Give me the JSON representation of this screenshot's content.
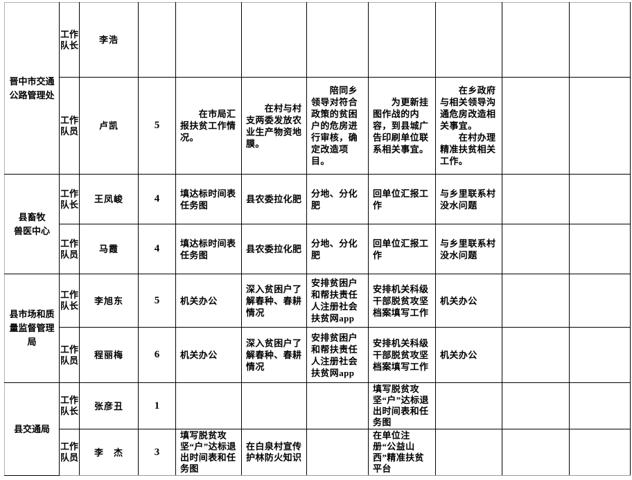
{
  "colors": {
    "cell_border": "#000000",
    "page_edge": "#b0b0b0",
    "text": "#000000",
    "background": "#ffffff"
  },
  "table": {
    "groups": [
      {
        "org": "晋中市交通\n公路管理处",
        "rows": [
          {
            "role": "工作队长",
            "name": "李浩",
            "days": "",
            "w1": "",
            "w2": "",
            "w3": "",
            "w4": "",
            "w5": "",
            "e1": "",
            "e2": ""
          },
          {
            "role": "工作队员",
            "name": "卢凯",
            "days": "5",
            "w1": "　　在市局汇报扶贫工作情况。",
            "w2": "　　在村与村支两委发放农业生产物资地膜。",
            "w3": "　　陪同乡领导对符合政策的贫困户的危房进行审核，确定改造项目。",
            "w4": "　　为更新挂图作战的内容，到县城广告印刷单位联系相关事宜。",
            "w5": "　　在乡政府与相关领导沟通危房改造相关事宜。\n　　在村办理精准扶贫相关工作。",
            "e1": "",
            "e2": ""
          }
        ]
      },
      {
        "org": "县畜牧\n兽医中心",
        "rows": [
          {
            "role": "工作队长",
            "name": "王凤峻",
            "days": "4",
            "w1": "填达标时间表任务图",
            "w2": "县农委拉化肥",
            "w3": "分地、分化肥",
            "w4": "回单位汇报工作",
            "w5": "与乡里联系村没水问题",
            "e1": "",
            "e2": ""
          },
          {
            "role": "工作队员",
            "name": "马霞",
            "days": "4",
            "w1": "填达标时间表任务图",
            "w2": "县农委拉化肥",
            "w3": "分地、分化肥",
            "w4": "回单位汇报工作",
            "w5": "与乡里联系村没水问题",
            "e1": "",
            "e2": ""
          }
        ]
      },
      {
        "org": "县市场和质\n量监督管理局",
        "rows": [
          {
            "role": "工作队长",
            "name": "李旭东",
            "days": "5",
            "w1": "机关办公",
            "w2": "深入贫困户了解春种、春耕情况",
            "w3": "安排贫困户和帮扶责任人注册社会扶贫网app",
            "w4": "安排机关科级干部脱贫攻坚档案填写工作",
            "w5": "机关办公",
            "e1": "",
            "e2": ""
          },
          {
            "role": "工作队员",
            "name": "程丽梅",
            "days": "6",
            "w1": "机关办公",
            "w2": "深入贫困户了解春种、春耕情况",
            "w3": "安排贫困户和帮扶责任人注册社会扶贫网app",
            "w4": "安排机关科级干部脱贫攻坚档案填写工作",
            "w5": "机关办公",
            "e1": "",
            "e2": ""
          }
        ]
      },
      {
        "org": "县交通局",
        "rows": [
          {
            "role": "工作队长",
            "name": "张彦丑",
            "days": "1",
            "w1": "",
            "w2": "",
            "w3": "",
            "w4": "填写脱贫攻坚“户”达标退出时间表和任务图",
            "w5": "",
            "e1": "",
            "e2": ""
          },
          {
            "role": "工作队员",
            "name": "李　杰",
            "days": "3",
            "w1": "填写脱贫攻坚“户”达标退出时间表和任务图",
            "w2": "在白泉村宣传护林防火知识",
            "w3": "",
            "w4": "在单位注册“公益山西”精准扶贫平台",
            "w5": "",
            "e1": "",
            "e2": ""
          }
        ]
      }
    ]
  }
}
